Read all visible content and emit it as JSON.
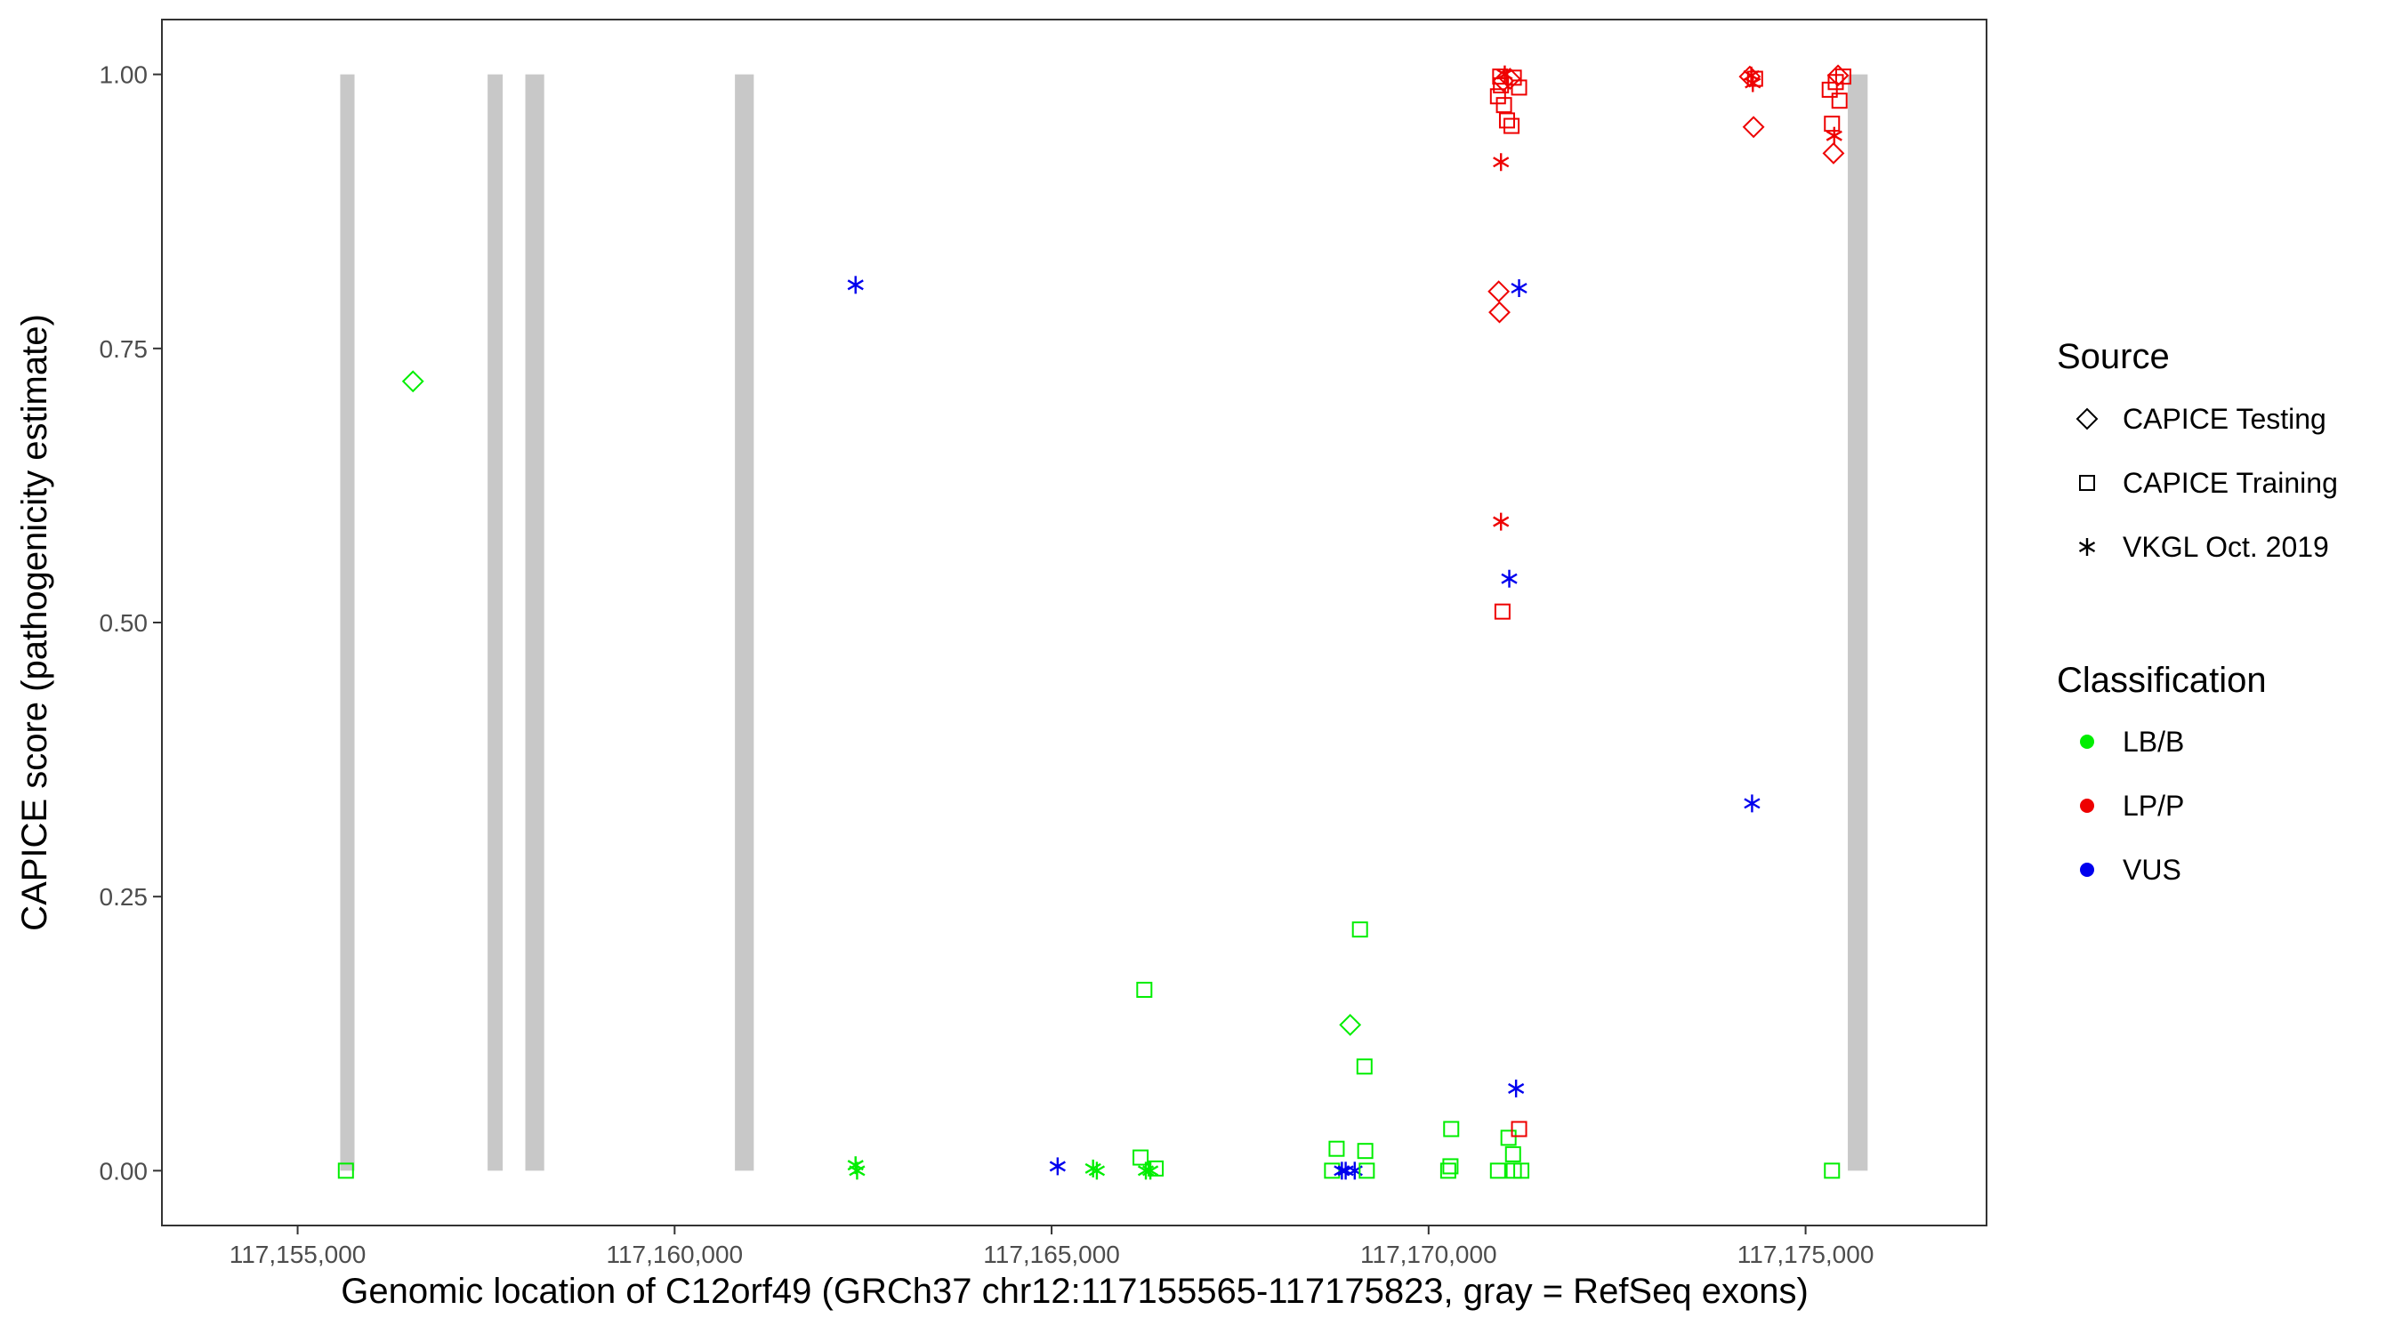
{
  "chart_data": {
    "type": "scatter",
    "xlabel": "Genomic location of C12orf49 (GRCh37 chr12:117155565-117175823, gray = RefSeq exons)",
    "ylabel": "CAPICE score (pathogenicity estimate)",
    "xlim": [
      117153200,
      117177400
    ],
    "ylim": [
      -0.05,
      1.05
    ],
    "x_ticks": [
      117155000,
      117160000,
      117165000,
      117170000,
      117175000
    ],
    "x_tick_labels": [
      "117,155,000",
      "117,160,000",
      "117,165,000",
      "117,170,000",
      "117,175,000"
    ],
    "y_ticks": [
      0,
      0.25,
      0.5,
      0.75,
      1.0
    ],
    "y_tick_labels": [
      "0.00",
      "0.25",
      "0.50",
      "0.75",
      "1.00"
    ],
    "grid": false,
    "exon_color": "#c8c8c8",
    "exons": [
      {
        "start": 117155565,
        "end": 117155755,
        "ymin": 0,
        "ymax": 1
      },
      {
        "start": 117157520,
        "end": 117157720,
        "ymin": 0,
        "ymax": 1
      },
      {
        "start": 117158020,
        "end": 117158270,
        "ymin": 0,
        "ymax": 1
      },
      {
        "start": 117160800,
        "end": 117161050,
        "ymin": 0,
        "ymax": 1
      },
      {
        "start": 117175560,
        "end": 117175823,
        "ymin": 0,
        "ymax": 1
      }
    ],
    "legend": {
      "position": "right",
      "source_title": "Source",
      "source_items": [
        {
          "label": "CAPICE Testing",
          "shape": "diamond"
        },
        {
          "label": "CAPICE Training",
          "shape": "square"
        },
        {
          "label": "VKGL Oct. 2019",
          "shape": "asterisk"
        }
      ],
      "class_title": "Classification",
      "class_items": [
        {
          "label": "LB/B",
          "color": "#00ee00"
        },
        {
          "label": "LP/P",
          "color": "#ee0000"
        },
        {
          "label": "VUS",
          "color": "#0000ee"
        }
      ]
    },
    "points": [
      {
        "x": 117155640,
        "y": 0.0,
        "shape": "square",
        "cls": "LB/B"
      },
      {
        "x": 117156530,
        "y": 0.72,
        "shape": "diamond",
        "cls": "LB/B"
      },
      {
        "x": 117162400,
        "y": 0.808,
        "shape": "asterisk",
        "cls": "VUS"
      },
      {
        "x": 117162400,
        "y": 0.005,
        "shape": "asterisk",
        "cls": "LB/B"
      },
      {
        "x": 117162420,
        "y": 0.0,
        "shape": "asterisk",
        "cls": "LB/B"
      },
      {
        "x": 117165080,
        "y": 0.004,
        "shape": "asterisk",
        "cls": "VUS"
      },
      {
        "x": 117165550,
        "y": 0.002,
        "shape": "asterisk",
        "cls": "LB/B"
      },
      {
        "x": 117165600,
        "y": 0.0,
        "shape": "asterisk",
        "cls": "LB/B"
      },
      {
        "x": 117166230,
        "y": 0.165,
        "shape": "square",
        "cls": "LB/B"
      },
      {
        "x": 117166180,
        "y": 0.012,
        "shape": "square",
        "cls": "LB/B"
      },
      {
        "x": 117166250,
        "y": 0.0,
        "shape": "asterisk",
        "cls": "LB/B"
      },
      {
        "x": 117166310,
        "y": 0.0,
        "shape": "asterisk",
        "cls": "LB/B"
      },
      {
        "x": 117166380,
        "y": 0.002,
        "shape": "square",
        "cls": "LB/B"
      },
      {
        "x": 117168720,
        "y": 0.0,
        "shape": "square",
        "cls": "LB/B"
      },
      {
        "x": 117168780,
        "y": 0.02,
        "shape": "square",
        "cls": "LB/B"
      },
      {
        "x": 117168850,
        "y": 0.0,
        "shape": "asterisk",
        "cls": "VUS"
      },
      {
        "x": 117168900,
        "y": 0.0,
        "shape": "asterisk",
        "cls": "VUS"
      },
      {
        "x": 117168960,
        "y": 0.133,
        "shape": "diamond",
        "cls": "LB/B"
      },
      {
        "x": 117169020,
        "y": 0.0,
        "shape": "asterisk",
        "cls": "VUS"
      },
      {
        "x": 117169090,
        "y": 0.22,
        "shape": "square",
        "cls": "LB/B"
      },
      {
        "x": 117169150,
        "y": 0.095,
        "shape": "square",
        "cls": "LB/B"
      },
      {
        "x": 117169160,
        "y": 0.018,
        "shape": "square",
        "cls": "LB/B"
      },
      {
        "x": 117169180,
        "y": 0.0,
        "shape": "square",
        "cls": "LB/B"
      },
      {
        "x": 117170260,
        "y": 0.0,
        "shape": "square",
        "cls": "LB/B"
      },
      {
        "x": 117170290,
        "y": 0.004,
        "shape": "square",
        "cls": "LB/B"
      },
      {
        "x": 117170300,
        "y": 0.038,
        "shape": "square",
        "cls": "LB/B"
      },
      {
        "x": 117170920,
        "y": 0.0,
        "shape": "square",
        "cls": "LB/B"
      },
      {
        "x": 117171060,
        "y": 0.03,
        "shape": "square",
        "cls": "LB/B"
      },
      {
        "x": 117171120,
        "y": 0.015,
        "shape": "square",
        "cls": "LB/B"
      },
      {
        "x": 117171130,
        "y": 0.0,
        "shape": "square",
        "cls": "LB/B"
      },
      {
        "x": 117171230,
        "y": 0.0,
        "shape": "square",
        "cls": "LB/B"
      },
      {
        "x": 117171200,
        "y": 0.038,
        "shape": "square",
        "cls": "LP/P"
      },
      {
        "x": 117171160,
        "y": 0.075,
        "shape": "asterisk",
        "cls": "VUS"
      },
      {
        "x": 117171070,
        "y": 0.54,
        "shape": "asterisk",
        "cls": "VUS"
      },
      {
        "x": 117170980,
        "y": 0.51,
        "shape": "square",
        "cls": "LP/P"
      },
      {
        "x": 117170960,
        "y": 0.592,
        "shape": "asterisk",
        "cls": "LP/P"
      },
      {
        "x": 117170930,
        "y": 0.802,
        "shape": "diamond",
        "cls": "LP/P"
      },
      {
        "x": 117170940,
        "y": 0.783,
        "shape": "diamond",
        "cls": "LP/P"
      },
      {
        "x": 117171200,
        "y": 0.805,
        "shape": "asterisk",
        "cls": "VUS"
      },
      {
        "x": 117170960,
        "y": 0.92,
        "shape": "asterisk",
        "cls": "LP/P"
      },
      {
        "x": 117171100,
        "y": 0.953,
        "shape": "square",
        "cls": "LP/P"
      },
      {
        "x": 117171040,
        "y": 0.958,
        "shape": "square",
        "cls": "LP/P"
      },
      {
        "x": 117171000,
        "y": 0.972,
        "shape": "square",
        "cls": "LP/P"
      },
      {
        "x": 117170920,
        "y": 0.98,
        "shape": "square",
        "cls": "LP/P"
      },
      {
        "x": 117170960,
        "y": 0.99,
        "shape": "square",
        "cls": "LP/P"
      },
      {
        "x": 117171200,
        "y": 0.988,
        "shape": "square",
        "cls": "LP/P"
      },
      {
        "x": 117170950,
        "y": 0.998,
        "shape": "square",
        "cls": "LP/P"
      },
      {
        "x": 117171010,
        "y": 1.0,
        "shape": "asterisk",
        "cls": "LP/P"
      },
      {
        "x": 117171080,
        "y": 0.996,
        "shape": "diamond",
        "cls": "LP/P"
      },
      {
        "x": 117171130,
        "y": 0.997,
        "shape": "square",
        "cls": "LP/P"
      },
      {
        "x": 117170990,
        "y": 0.994,
        "shape": "diamond",
        "cls": "LP/P"
      },
      {
        "x": 117174290,
        "y": 0.335,
        "shape": "asterisk",
        "cls": "VUS"
      },
      {
        "x": 117174310,
        "y": 0.952,
        "shape": "diamond",
        "cls": "LP/P"
      },
      {
        "x": 117174260,
        "y": 0.998,
        "shape": "diamond",
        "cls": "LP/P"
      },
      {
        "x": 117174300,
        "y": 0.992,
        "shape": "asterisk",
        "cls": "LP/P"
      },
      {
        "x": 117174330,
        "y": 0.996,
        "shape": "square",
        "cls": "LP/P"
      },
      {
        "x": 117174280,
        "y": 0.999,
        "shape": "asterisk",
        "cls": "LP/P"
      },
      {
        "x": 117175350,
        "y": 0.0,
        "shape": "square",
        "cls": "LB/B"
      },
      {
        "x": 117175370,
        "y": 0.928,
        "shape": "diamond",
        "cls": "LP/P"
      },
      {
        "x": 117175380,
        "y": 0.944,
        "shape": "asterisk",
        "cls": "LP/P"
      },
      {
        "x": 117175350,
        "y": 0.955,
        "shape": "square",
        "cls": "LP/P"
      },
      {
        "x": 117175450,
        "y": 0.976,
        "shape": "square",
        "cls": "LP/P"
      },
      {
        "x": 117175320,
        "y": 0.986,
        "shape": "square",
        "cls": "LP/P"
      },
      {
        "x": 117175400,
        "y": 0.993,
        "shape": "square",
        "cls": "LP/P"
      },
      {
        "x": 117175500,
        "y": 0.998,
        "shape": "square",
        "cls": "LP/P"
      },
      {
        "x": 117175430,
        "y": 0.999,
        "shape": "diamond",
        "cls": "LP/P"
      }
    ]
  }
}
